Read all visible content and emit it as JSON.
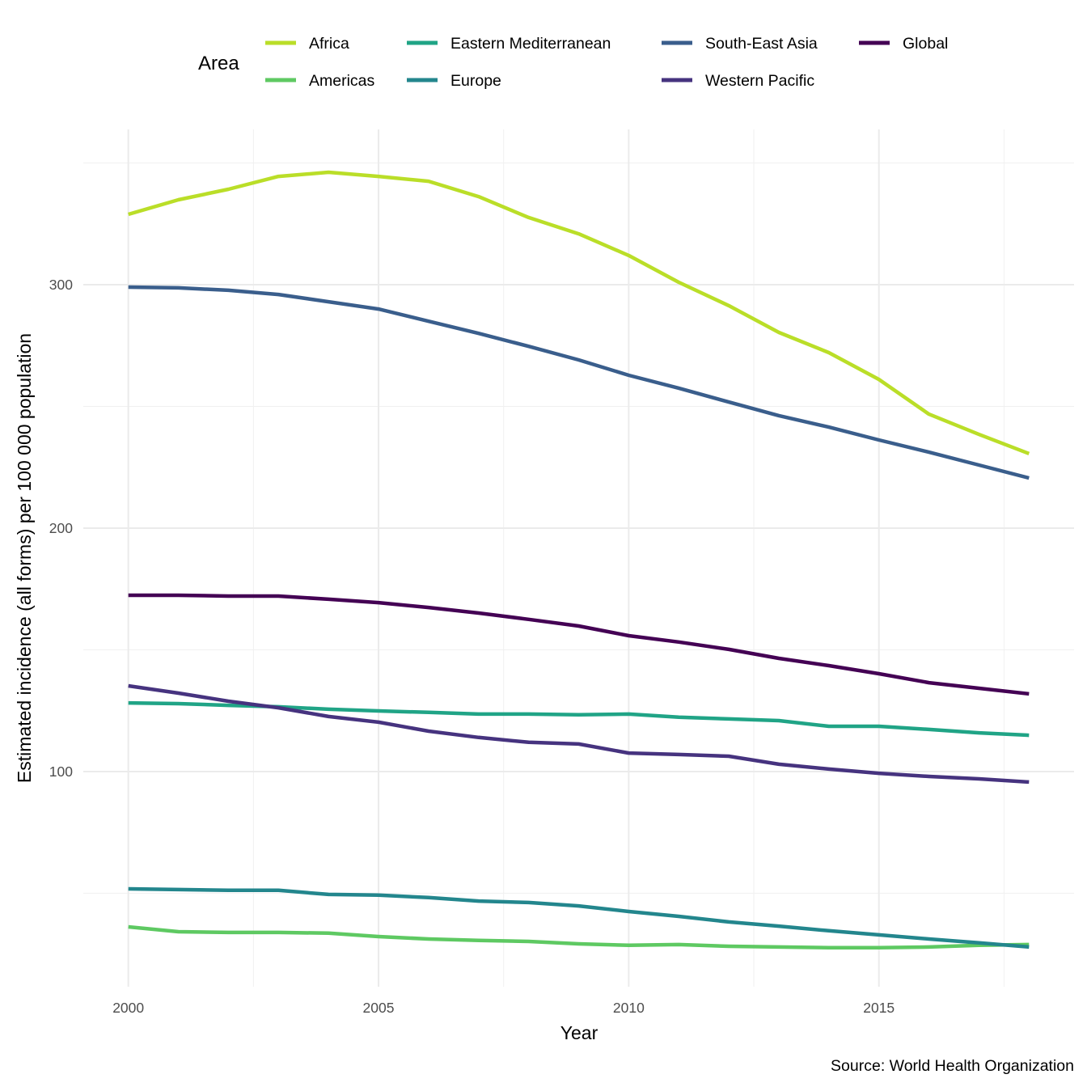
{
  "chart_data": {
    "type": "line",
    "title": "",
    "xlabel": "Year",
    "ylabel": "Estimated incidence (all forms) per 100 000 population",
    "caption": "Source: World Health Organization",
    "legend_title": "Area",
    "legend_position": "top",
    "grid": true,
    "xlim": [
      1999.1,
      2018.9
    ],
    "ylim": [
      11.6,
      363.8
    ],
    "x_ticks": [
      2000,
      2005,
      2010,
      2015
    ],
    "x_tick_labels": [
      "2000",
      "2005",
      "2010",
      "2015"
    ],
    "y_ticks": [
      100,
      200,
      300
    ],
    "y_tick_labels": [
      "100",
      "200",
      "300"
    ],
    "x": [
      2000,
      2001,
      2002,
      2003,
      2004,
      2005,
      2006,
      2007,
      2008,
      2009,
      2010,
      2011,
      2012,
      2013,
      2014,
      2015,
      2016,
      2017,
      2018
    ],
    "series": [
      {
        "name": "Africa",
        "color": "#bade28",
        "values": [
          328.9,
          334.9,
          339.2,
          344.5,
          346.2,
          344.5,
          342.5,
          336.2,
          327.6,
          320.9,
          312.0,
          301.0,
          291.4,
          280.4,
          272.1,
          261.1,
          246.8,
          238.5,
          230.6
        ]
      },
      {
        "name": "Americas",
        "color": "#5ec962",
        "values": [
          36.2,
          34.2,
          33.9,
          33.9,
          33.6,
          32.2,
          31.2,
          30.6,
          30.2,
          29.2,
          28.6,
          28.9,
          28.2,
          27.9,
          27.6,
          27.6,
          27.9,
          28.6,
          28.9
        ]
      },
      {
        "name": "Eastern Mediterranean",
        "color": "#20a486",
        "values": [
          128.2,
          127.9,
          127.2,
          126.6,
          125.6,
          124.9,
          124.3,
          123.6,
          123.6,
          123.3,
          123.6,
          122.3,
          121.6,
          120.9,
          118.6,
          118.6,
          117.3,
          115.9,
          114.9
        ]
      },
      {
        "name": "Europe",
        "color": "#23868d",
        "values": [
          51.8,
          51.5,
          51.2,
          51.2,
          49.5,
          49.2,
          48.2,
          46.8,
          46.2,
          44.8,
          42.5,
          40.5,
          38.2,
          36.5,
          34.6,
          32.9,
          31.2,
          29.6,
          27.9
        ]
      },
      {
        "name": "South-East Asia",
        "color": "#3a5e8c",
        "values": [
          299.0,
          298.7,
          297.7,
          296.0,
          293.0,
          290.0,
          285.0,
          280.0,
          274.7,
          269.1,
          262.8,
          257.5,
          251.8,
          246.2,
          241.5,
          236.2,
          231.2,
          225.9,
          220.6
        ]
      },
      {
        "name": "Western Pacific",
        "color": "#46337f",
        "values": [
          135.2,
          132.2,
          128.9,
          126.2,
          122.6,
          120.3,
          116.6,
          114.0,
          112.0,
          111.3,
          107.6,
          107.0,
          106.3,
          103.0,
          101.0,
          99.3,
          98.0,
          97.0,
          95.7
        ]
      },
      {
        "name": "Global",
        "color": "#440154",
        "values": [
          172.4,
          172.4,
          172.1,
          172.1,
          170.8,
          169.4,
          167.4,
          165.1,
          162.5,
          159.8,
          155.8,
          153.2,
          150.2,
          146.5,
          143.5,
          140.2,
          136.5,
          134.2,
          131.9
        ]
      }
    ]
  }
}
